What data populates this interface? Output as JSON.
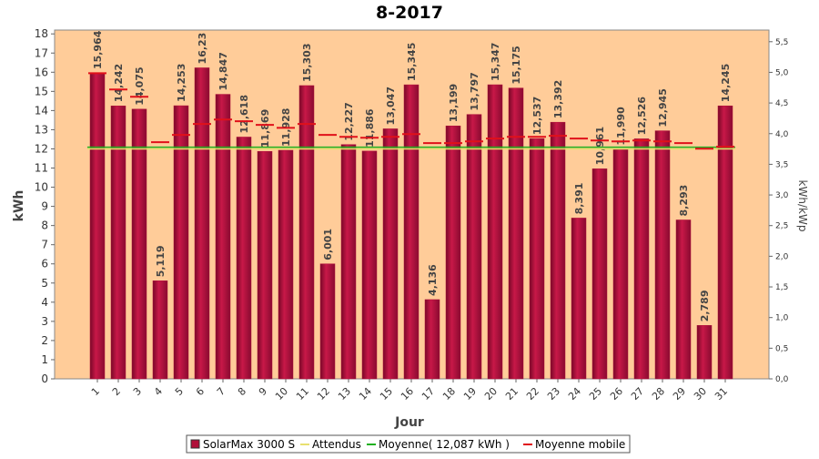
{
  "chart_data": {
    "type": "bar",
    "title": "8-2017",
    "x_label": "Jour",
    "y_label": "kWh",
    "y2_label": "kWh/kWp",
    "categories": [
      "1",
      "2",
      "3",
      "4",
      "5",
      "6",
      "7",
      "8",
      "9",
      "10",
      "11",
      "12",
      "13",
      "14",
      "15",
      "16",
      "17",
      "18",
      "19",
      "20",
      "21",
      "22",
      "23",
      "24",
      "25",
      "26",
      "27",
      "28",
      "29",
      "30",
      "31"
    ],
    "series": [
      {
        "name": "SolarMax 3000 S",
        "color": "#b0103a",
        "values": [
          15.964,
          14.242,
          14.075,
          5.119,
          14.253,
          16.23,
          14.847,
          12.618,
          11.869,
          11.928,
          15.303,
          6.001,
          12.227,
          11.886,
          13.047,
          15.345,
          4.136,
          13.199,
          13.797,
          15.347,
          15.175,
          12.537,
          13.392,
          8.391,
          10.961,
          11.99,
          12.526,
          12.945,
          8.293,
          2.789,
          14.245
        ],
        "value_labels": [
          "15,964",
          "14,242",
          "14,075",
          "5,119",
          "14,253",
          "16,23",
          "14,847",
          "12,618",
          "11,869",
          "11,928",
          "15,303",
          "6,001",
          "12,227",
          "11,886",
          "13,047",
          "15,345",
          "4,136",
          "13,199",
          "13,797",
          "15,347",
          "15,175",
          "12,537",
          "13,392",
          "8,391",
          "10,961",
          "11,990",
          "12,526",
          "12,945",
          "8,293",
          "2,789",
          "14,245"
        ]
      },
      {
        "name": "Attendus",
        "color": "#e8e070",
        "values": [
          12.0,
          12.0,
          12.0,
          12.0,
          12.0,
          12.0,
          12.0,
          12.0,
          12.0,
          12.0,
          12.0,
          12.0,
          12.0,
          12.0,
          12.0,
          12.0,
          12.0,
          12.0,
          12.0,
          12.0,
          12.0,
          12.0,
          12.0,
          12.0,
          12.0,
          12.0,
          12.0,
          12.0,
          12.0,
          12.0,
          12.0
        ]
      },
      {
        "name": "Moyenne mobile",
        "color": "#e0101a",
        "values": [
          15.95,
          15.1,
          14.72,
          12.35,
          12.73,
          13.3,
          13.53,
          13.44,
          13.25,
          13.1,
          13.3,
          12.73,
          12.63,
          12.58,
          12.63,
          12.77,
          12.3,
          12.3,
          12.39,
          12.54,
          12.63,
          12.63,
          12.68,
          12.54,
          12.44,
          12.39,
          12.44,
          12.39,
          12.3,
          12.01,
          12.11
        ]
      }
    ],
    "moyenne": {
      "name": "Moyenne( 12,087 kWh )",
      "value": 12.087,
      "color": "#20b020"
    },
    "ylim": [
      0,
      18.2
    ],
    "yticks": [
      0,
      1,
      2,
      3,
      4,
      5,
      6,
      7,
      8,
      9,
      10,
      11,
      12,
      13,
      14,
      15,
      16,
      17,
      18
    ],
    "y2lim": [
      0,
      5.69
    ],
    "y2ticks": [
      {
        "value": 0,
        "label": "0,0"
      },
      {
        "value": 0.5,
        "label": "0,5"
      },
      {
        "value": 1,
        "label": "1,0"
      },
      {
        "value": 1.5,
        "label": "1,5"
      },
      {
        "value": 2,
        "label": "2,0"
      },
      {
        "value": 2.5,
        "label": "2,5"
      },
      {
        "value": 3,
        "label": "3,0"
      },
      {
        "value": 3.5,
        "label": "3,5"
      },
      {
        "value": 4,
        "label": "4,0"
      },
      {
        "value": 4.5,
        "label": "4,5"
      },
      {
        "value": 5,
        "label": "5,0"
      },
      {
        "value": 5.5,
        "label": "5,5"
      }
    ],
    "plot_background": "#ffcc99"
  }
}
